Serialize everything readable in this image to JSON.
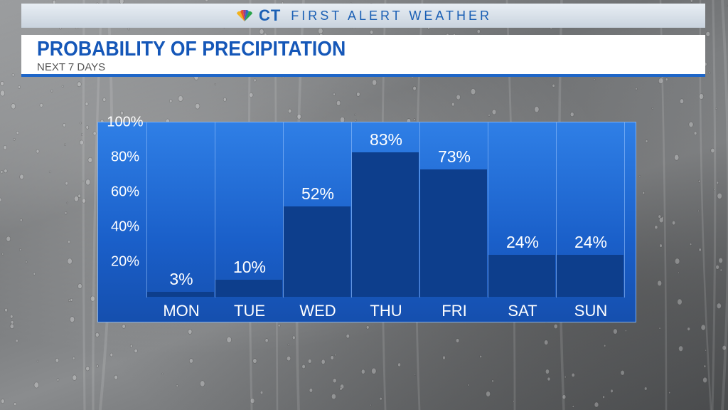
{
  "header": {
    "brand": "CT",
    "network_logo": "peacock-icon",
    "tagline": "FIRST ALERT WEATHER"
  },
  "title": "PROBABILITY OF PRECIPITATION",
  "subtitle": "NEXT 7 DAYS",
  "colors": {
    "panel": "#1a5fc9",
    "bar": "#0d3e8c",
    "title": "#1557b8"
  },
  "chart_data": {
    "type": "bar",
    "title": "PROBABILITY OF PRECIPITATION",
    "subtitle": "NEXT 7 DAYS",
    "categories": [
      "MON",
      "TUE",
      "WED",
      "THU",
      "FRI",
      "SAT",
      "SUN"
    ],
    "values": [
      3,
      10,
      52,
      83,
      73,
      24,
      24
    ],
    "value_labels": [
      "3%",
      "10%",
      "52%",
      "83%",
      "73%",
      "24%",
      "24%"
    ],
    "ylim": [
      0,
      100
    ],
    "ytick_labels": [
      "100%",
      "80%",
      "60%",
      "40%",
      "20%"
    ],
    "ytick_values": [
      100,
      80,
      60,
      40,
      20
    ],
    "grid": false,
    "legend": "none"
  }
}
